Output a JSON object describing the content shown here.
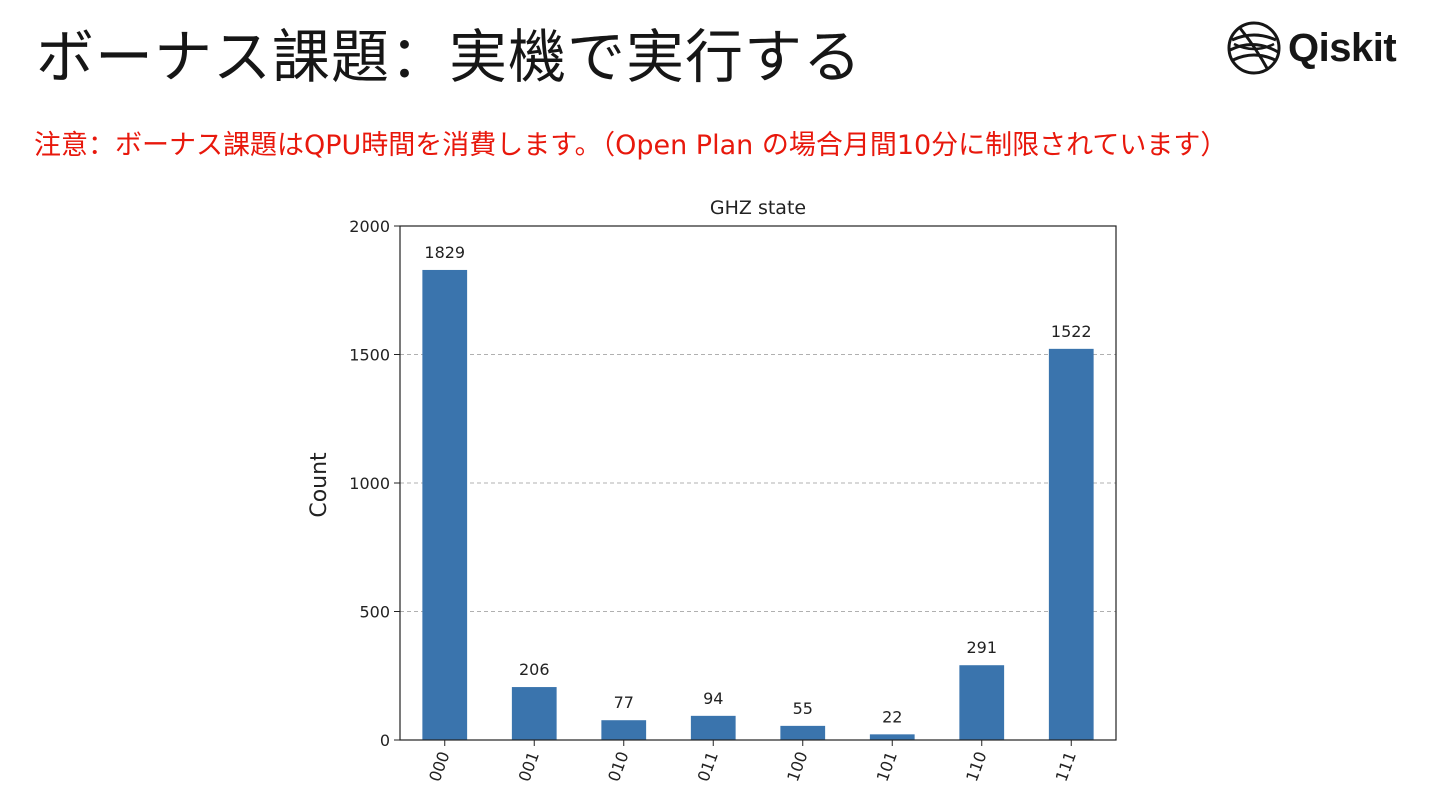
{
  "slide": {
    "title": "ボーナス課題：実機で実行する",
    "note": "注意：ボーナス課題はQPU時間を消費します。（Open Plan の場合月間10分に制限されています）"
  },
  "logo": {
    "icon": "qiskit-sphere-icon",
    "text": "Qiskit"
  },
  "colors": {
    "bar": "#3a74ad",
    "note": "#e8180c",
    "grid": "#b0b0b0"
  },
  "chart_data": {
    "type": "bar",
    "title": "GHZ state",
    "xlabel": "",
    "ylabel": "Count",
    "categories": [
      "000",
      "001",
      "010",
      "011",
      "100",
      "101",
      "110",
      "111"
    ],
    "values": [
      1829,
      206,
      77,
      94,
      55,
      22,
      291,
      1522
    ],
    "ylim": [
      0,
      2000
    ],
    "yticks": [
      0,
      500,
      1000,
      1500,
      2000
    ],
    "grid": "horizontal dashed",
    "data_labels": true,
    "tick_label_rotation": 70
  }
}
